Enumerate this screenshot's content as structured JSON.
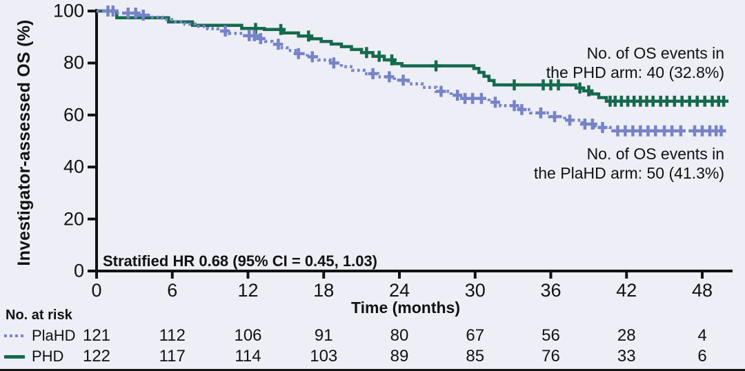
{
  "figure": {
    "background_color": "#edeef6",
    "axis_color": "#111111",
    "bottom_border_color": "#161616"
  },
  "chart_data": {
    "type": "line",
    "subtype": "kaplan_meier_step",
    "title": "",
    "xlabel": "Time (months)",
    "ylabel": "Investigator-assessed OS (%)",
    "xlim": [
      0,
      50.5
    ],
    "ylim": [
      0,
      100
    ],
    "x_ticks": [
      0,
      6,
      12,
      18,
      24,
      30,
      36,
      42,
      48
    ],
    "y_ticks": [
      0,
      20,
      40,
      60,
      80,
      100
    ],
    "grid": false,
    "legend_position": "risk-table-left",
    "series": [
      {
        "name": "PHD",
        "color": "#156a4c",
        "line_style": "solid",
        "steps": [
          [
            0,
            100
          ],
          [
            1.6,
            97.4
          ],
          [
            5.7,
            95.8
          ],
          [
            7.6,
            94.5
          ],
          [
            11.5,
            93.3
          ],
          [
            13.3,
            92.9
          ],
          [
            14.8,
            91.6
          ],
          [
            16.0,
            90.4
          ],
          [
            17.0,
            89.3
          ],
          [
            17.8,
            88.3
          ],
          [
            18.6,
            87.3
          ],
          [
            19.4,
            86.3
          ],
          [
            20.2,
            85.2
          ],
          [
            21.0,
            84.0
          ],
          [
            21.9,
            82.6
          ],
          [
            22.8,
            81.2
          ],
          [
            23.6,
            79.8
          ],
          [
            24.2,
            78.9
          ],
          [
            29.9,
            77.9
          ],
          [
            30.3,
            76.4
          ],
          [
            30.7,
            74.9
          ],
          [
            31.1,
            73.3
          ],
          [
            31.5,
            71.6
          ],
          [
            38.0,
            70.4
          ],
          [
            38.6,
            69.3
          ],
          [
            39.2,
            68.1
          ],
          [
            39.8,
            66.7
          ],
          [
            40.4,
            65.3
          ],
          [
            49.9,
            65.3
          ]
        ],
        "censor_months": [
          12.6,
          14.6,
          16.8,
          21.4,
          22.4,
          23.4,
          26.9,
          33.1,
          35.4,
          36.0,
          36.6,
          38.3,
          39.0,
          40.7,
          41.1,
          41.6,
          42.1,
          42.6,
          43.1,
          43.6,
          44.1,
          44.7,
          45.2,
          45.8,
          46.4,
          47.0,
          47.6,
          48.2,
          48.8,
          49.3,
          49.7
        ]
      },
      {
        "name": "PlaHD",
        "color": "#7683c8",
        "line_style": "dotted",
        "steps": [
          [
            0,
            100
          ],
          [
            1.4,
            99.2
          ],
          [
            3.2,
            98.4
          ],
          [
            4.3,
            97.6
          ],
          [
            5.2,
            96.7
          ],
          [
            6.1,
            95.9
          ],
          [
            7.0,
            95.0
          ],
          [
            7.8,
            94.1
          ],
          [
            8.8,
            93.2
          ],
          [
            9.6,
            92.3
          ],
          [
            10.5,
            91.4
          ],
          [
            11.6,
            90.5
          ],
          [
            12.9,
            89.4
          ],
          [
            13.4,
            88.3
          ],
          [
            13.9,
            87.2
          ],
          [
            14.5,
            85.9
          ],
          [
            15.1,
            84.8
          ],
          [
            15.9,
            83.6
          ],
          [
            16.7,
            82.4
          ],
          [
            17.6,
            81.2
          ],
          [
            18.5,
            80.0
          ],
          [
            19.4,
            78.6
          ],
          [
            20.3,
            77.2
          ],
          [
            21.2,
            75.9
          ],
          [
            22.3,
            74.7
          ],
          [
            23.6,
            73.4
          ],
          [
            24.7,
            72.0
          ],
          [
            25.8,
            70.6
          ],
          [
            26.9,
            69.1
          ],
          [
            28.1,
            67.6
          ],
          [
            29.2,
            66.4
          ],
          [
            31.1,
            64.9
          ],
          [
            32.0,
            63.6
          ],
          [
            33.5,
            62.1
          ],
          [
            34.4,
            60.8
          ],
          [
            35.9,
            59.4
          ],
          [
            37.1,
            58.0
          ],
          [
            38.5,
            56.5
          ],
          [
            39.5,
            55.2
          ],
          [
            40.7,
            53.9
          ],
          [
            49.6,
            53.9
          ]
        ],
        "censor_months": [
          0.9,
          1.3,
          2.5,
          3.1,
          3.7,
          10.2,
          12.1,
          12.5,
          13.0,
          14.4,
          16.0,
          17.1,
          18.8,
          21.9,
          23.2,
          24.3,
          27.3,
          28.6,
          29.2,
          29.8,
          30.5,
          31.6,
          33.1,
          33.7,
          35.2,
          36.3,
          37.5,
          38.7,
          39.3,
          40.1,
          41.3,
          41.9,
          42.5,
          43.1,
          43.7,
          44.3,
          45.0,
          45.6,
          46.3,
          47.4,
          48.0,
          48.6,
          49.1,
          49.5
        ]
      }
    ],
    "annotations": {
      "phd_events": {
        "lines": [
          "No. of OS events in",
          "the PHD arm: 40 (32.8%)"
        ]
      },
      "plahd_events": {
        "lines": [
          "No. of OS events in",
          "the PlaHD arm: 50 (41.3%)"
        ]
      },
      "hazard_ratio": "Stratified HR 0.68 (95% CI = 0.45, 1.03)"
    }
  },
  "risk_table": {
    "header": "No. at risk",
    "time_points": [
      0,
      6,
      12,
      18,
      24,
      30,
      36,
      42,
      48
    ],
    "rows": [
      {
        "label": "PlaHD",
        "swatch_style": "dotted",
        "color": "#7683c8",
        "values": [
          "121",
          "112",
          "106",
          "91",
          "80",
          "67",
          "56",
          "28",
          "4"
        ]
      },
      {
        "label": "PHD",
        "swatch_style": "solid",
        "color": "#156a4c",
        "values": [
          "122",
          "117",
          "114",
          "103",
          "89",
          "85",
          "76",
          "33",
          "6"
        ]
      }
    ]
  }
}
